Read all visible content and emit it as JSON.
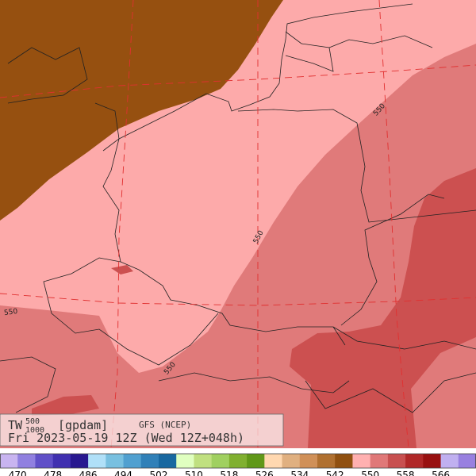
{
  "map": {
    "contour_labels": [
      "550",
      "550",
      "550",
      "550"
    ]
  },
  "legend": {
    "variable": "TW",
    "upper_level": "500",
    "lower_level": "1000",
    "unit": "[gpdam]",
    "model": "GFS (NCEP)",
    "time": "Fri 2023-05-19 12Z (Wed 12Z+048h)"
  },
  "colorbar": {
    "colors": [
      "#c8b4f0",
      "#9080e0",
      "#6050c8",
      "#4030b0",
      "#281890",
      "#b0e0f8",
      "#78c0e0",
      "#50a0d0",
      "#3080b8",
      "#1868a0",
      "#e0ffc0",
      "#c0e080",
      "#a0d060",
      "#80b030",
      "#609818",
      "#ffd8b0",
      "#e0b080",
      "#d09058",
      "#b07030",
      "#905010",
      "#ffb0b0",
      "#e07878",
      "#c85050",
      "#b02828",
      "#981010",
      "#c0b0f0",
      "#9880e0"
    ],
    "labels": [
      470,
      478,
      486,
      494,
      502,
      510,
      518,
      526,
      534,
      542,
      550,
      558,
      566
    ]
  }
}
